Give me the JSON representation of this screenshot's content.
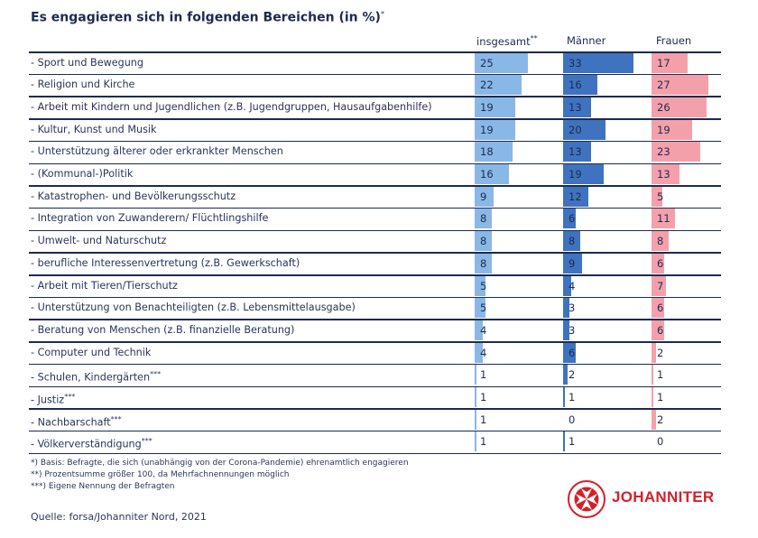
{
  "title": "Es engagieren sich in folgenden Bereichen (in %)",
  "title_marker": "*",
  "colors": {
    "insgesamt": "#8ab8e6",
    "maenner": "#3f73bf",
    "frauen": "#f4a0ab",
    "lines": "#1d2b4f",
    "brand": "#d5202a"
  },
  "chart_data": {
    "type": "bar",
    "orientation": "horizontal",
    "categories": [
      "- Sport und Bewegung",
      "- Religion und Kirche",
      "- Arbeit mit Kindern und Jugendlichen (z.B. Jugendgruppen, Hausaufgabenhilfe)",
      "- Kultur, Kunst und Musik",
      "- Unterstützung älterer oder erkrankter Menschen",
      "- (Kommunal-)Politik",
      "- Katastrophen- und Bevölkerungsschutz",
      "- Integration von Zuwanderern/ Flüchtlingshilfe",
      "- Umwelt- und Naturschutz",
      "- berufliche Interessenvertretung (z.B. Gewerkschaft)",
      "- Arbeit mit Tieren/Tierschutz",
      "- Unterstützung von Benachteiligten (z.B. Lebensmittelausgabe)",
      "- Beratung von Menschen (z.B. finanzielle Beratung)",
      "- Computer und Technik",
      "- Schulen, Kindergärten",
      "- Justiz",
      "- Nachbarschaft",
      "- Völkerverständigung"
    ],
    "category_markers": [
      "",
      "",
      "",
      "",
      "",
      "",
      "",
      "",
      "",
      "",
      "",
      "",
      "",
      "",
      "***",
      "***",
      "***",
      "***"
    ],
    "series": [
      {
        "name": "insgesamt",
        "marker": "**",
        "values": [
          25,
          22,
          19,
          19,
          18,
          16,
          9,
          8,
          8,
          8,
          5,
          5,
          4,
          4,
          1,
          1,
          1,
          1
        ]
      },
      {
        "name": "Männer",
        "marker": "",
        "values": [
          33,
          16,
          13,
          20,
          13,
          19,
          12,
          6,
          8,
          9,
          4,
          3,
          3,
          6,
          2,
          1,
          0,
          1
        ]
      },
      {
        "name": "Frauen",
        "marker": "",
        "values": [
          17,
          27,
          26,
          19,
          23,
          13,
          5,
          11,
          8,
          6,
          7,
          6,
          6,
          2,
          1,
          1,
          2,
          0
        ]
      }
    ],
    "xlim": [
      0,
      35
    ],
    "data_labels": true,
    "grid": false
  },
  "footnotes": [
    "*) Basis: Befragte, die sich (unabhängig von der Corona-Pandemie) ehrenamtlich engagieren",
    "**) Prozentsumme größer 100, da Mehrfachnennungen möglich",
    "***) Eigene Nennung der Befragten"
  ],
  "source": "Quelle: forsa/Johanniter Nord, 2021",
  "logo": {
    "icon": "johanniter-cross-seal-icon",
    "text": "JOHANNITER",
    "seal_text": "JOHANNITER UNFALL-HILFE"
  }
}
